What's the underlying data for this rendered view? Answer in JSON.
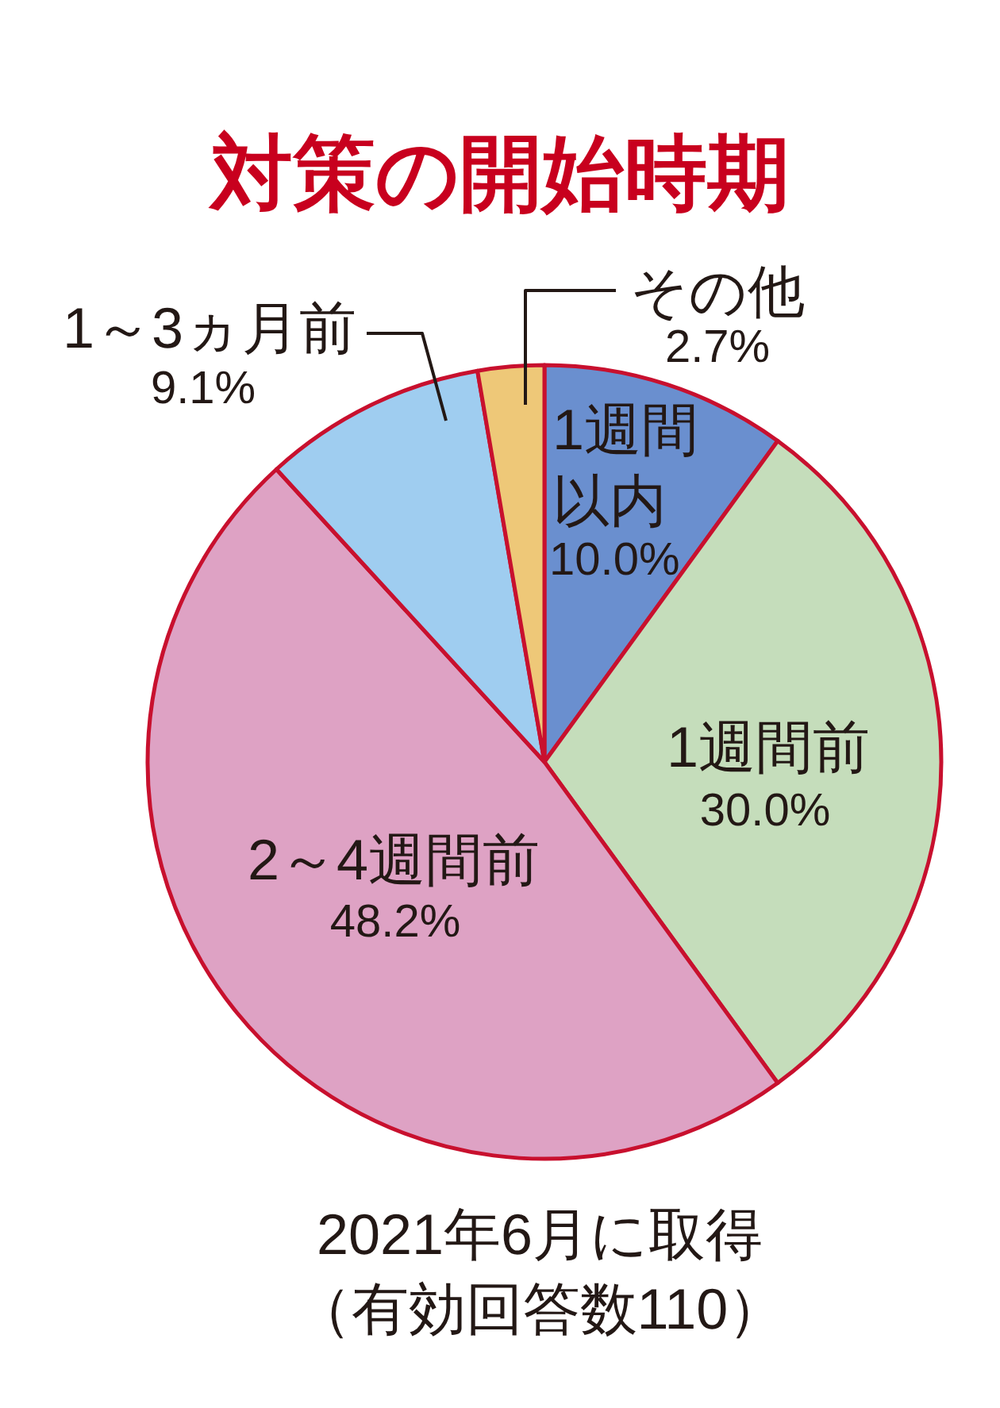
{
  "chart_data": {
    "type": "pie",
    "title": "対策の開始時期",
    "categories": [
      "1週間以内",
      "1週間前",
      "2～4週間前",
      "1～3ヵ月前",
      "その他"
    ],
    "values": [
      10.0,
      30.0,
      48.2,
      9.1,
      2.7
    ],
    "value_labels": [
      "10.0%",
      "30.0%",
      "48.2%",
      "9.1%",
      "2.7%"
    ],
    "colors": [
      "#6a8fcf",
      "#c5ddbb",
      "#dea2c4",
      "#9fcdf0",
      "#eec878"
    ],
    "annotations": [
      "2021年6月に取得",
      "（有効回答数110）"
    ]
  }
}
